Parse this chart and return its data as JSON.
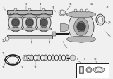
{
  "bg_color": "#f0f0f0",
  "fg_color": "#1a1a1a",
  "light_gray": "#d8d8d8",
  "mid_gray": "#b8b8b8",
  "dark_gray": "#888888",
  "white": "#ffffff",
  "near_white": "#eeeeee"
}
